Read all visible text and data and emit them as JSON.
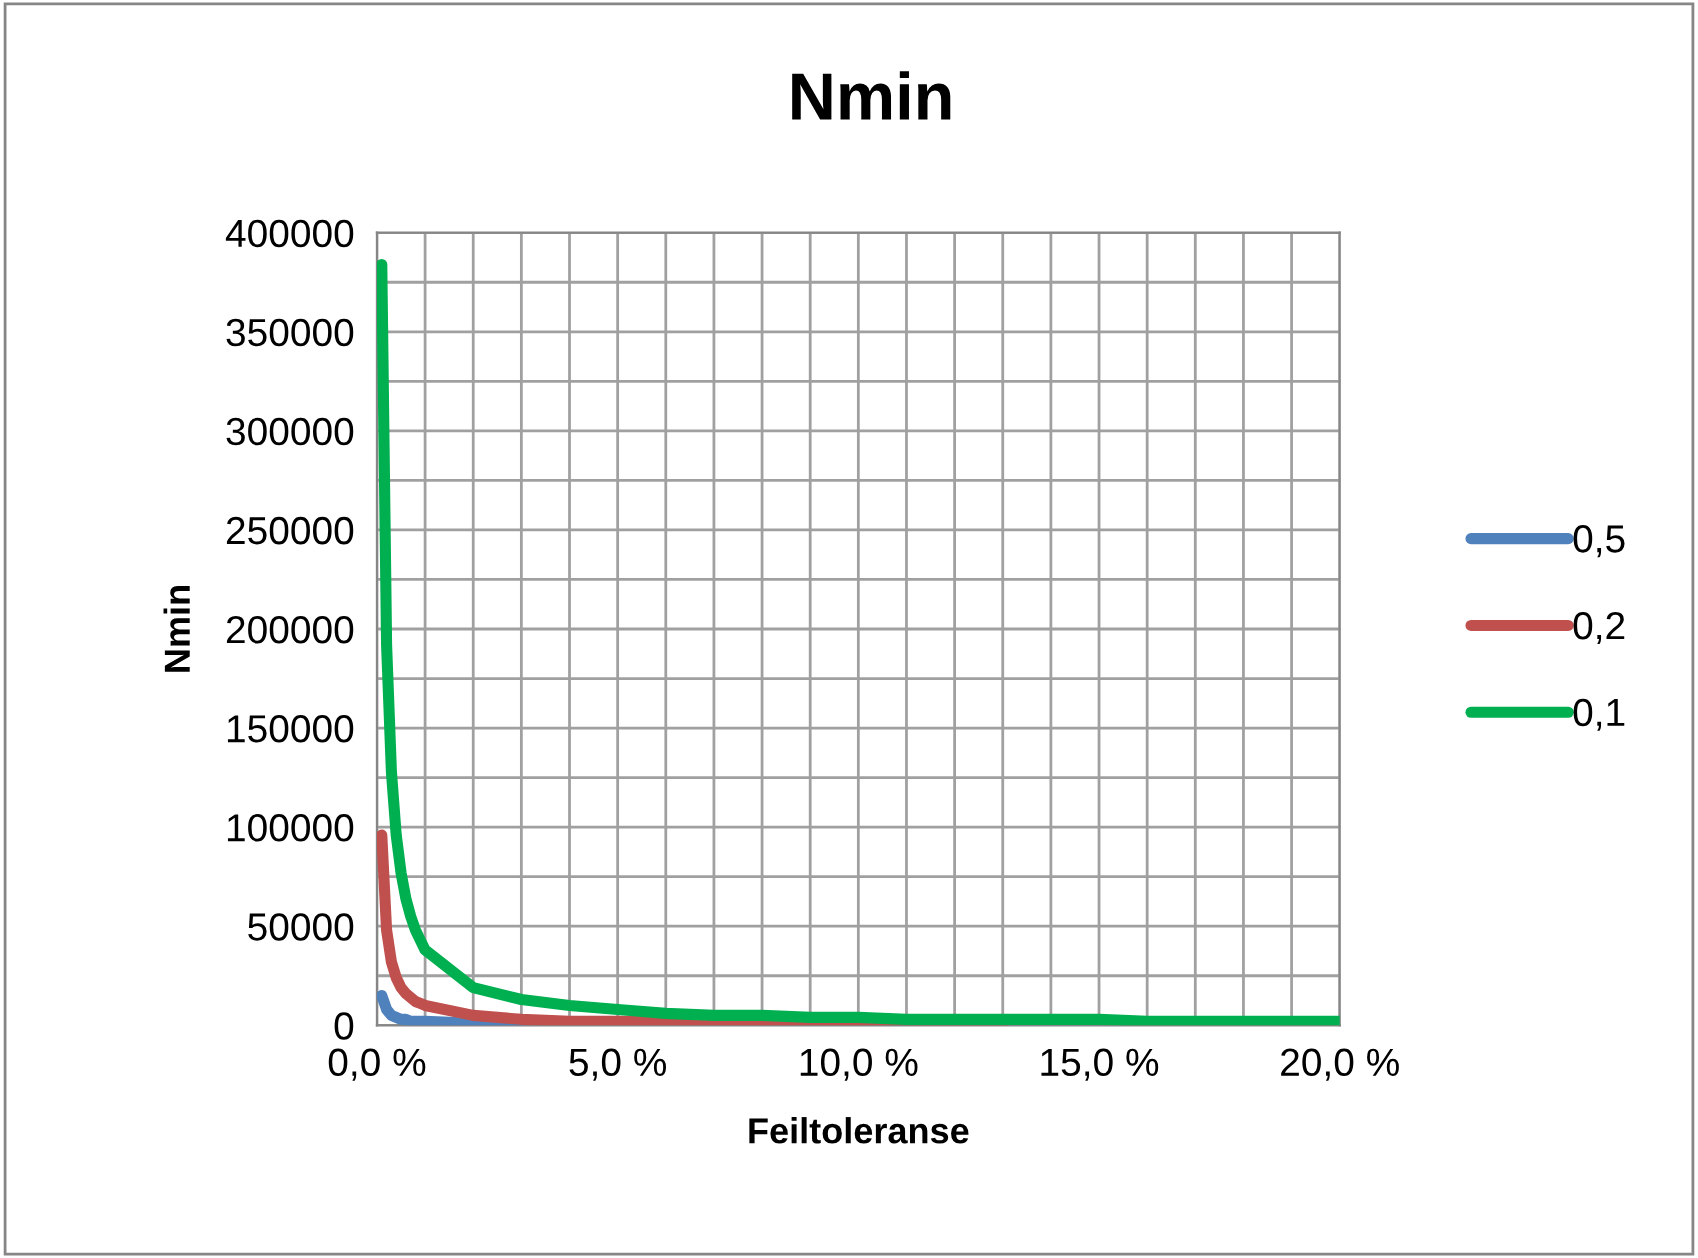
{
  "chart_data": {
    "type": "line",
    "title": "Nmin",
    "xlabel": "Feiltoleranse",
    "ylabel": "Nmin",
    "x": [
      0.1,
      0.2,
      0.3,
      0.4,
      0.5,
      0.6,
      0.7,
      0.8,
      0.9,
      1,
      2,
      3,
      4,
      5,
      6,
      7,
      8,
      9,
      10,
      11,
      12,
      13,
      14,
      15,
      16,
      17,
      18,
      19,
      20
    ],
    "series": [
      {
        "name": "0,5",
        "color": "#4f81bd",
        "values": [
          15000,
          8000,
          5000,
          4000,
          3000,
          3000,
          2000,
          2000,
          2000,
          2000,
          1000,
          1000,
          null,
          null,
          null,
          null,
          null,
          null,
          null,
          null,
          null,
          null,
          null,
          null,
          null,
          null,
          null,
          null,
          null
        ]
      },
      {
        "name": "0,2",
        "color": "#c0504d",
        "values": [
          96000,
          48000,
          32000,
          24000,
          19000,
          16000,
          14000,
          12000,
          11000,
          10000,
          5000,
          3000,
          2000,
          2000,
          2000,
          1000,
          1000,
          1000,
          1000,
          1000,
          1000,
          1000,
          null,
          null,
          null,
          null,
          null,
          null,
          null
        ]
      },
      {
        "name": "0,1",
        "color": "#00b050",
        "values": [
          384000,
          192000,
          128000,
          96000,
          77000,
          64000,
          55000,
          48000,
          43000,
          38000,
          19000,
          13000,
          10000,
          8000,
          6000,
          5000,
          5000,
          4000,
          4000,
          3000,
          3000,
          3000,
          3000,
          3000,
          2000,
          2000,
          2000,
          2000,
          2000
        ]
      }
    ],
    "xlim": [
      0,
      20
    ],
    "xticks": [
      {
        "value": 0,
        "label": "0,0 %"
      },
      {
        "value": 1,
        "label": null
      },
      {
        "value": 2,
        "label": null
      },
      {
        "value": 3,
        "label": null
      },
      {
        "value": 4,
        "label": null
      },
      {
        "value": 5,
        "label": "5,0 %"
      },
      {
        "value": 6,
        "label": null
      },
      {
        "value": 7,
        "label": null
      },
      {
        "value": 8,
        "label": null
      },
      {
        "value": 9,
        "label": null
      },
      {
        "value": 10,
        "label": "10,0 %"
      },
      {
        "value": 11,
        "label": null
      },
      {
        "value": 12,
        "label": null
      },
      {
        "value": 13,
        "label": null
      },
      {
        "value": 14,
        "label": null
      },
      {
        "value": 15,
        "label": "15,0 %"
      },
      {
        "value": 16,
        "label": null
      },
      {
        "value": 17,
        "label": null
      },
      {
        "value": 18,
        "label": null
      },
      {
        "value": 19,
        "label": null
      },
      {
        "value": 20,
        "label": "20,0 %"
      }
    ],
    "ylim": [
      0,
      400000
    ],
    "yticks": [
      0,
      {
        "value": 25000,
        "label": null
      },
      50000,
      {
        "value": 75000,
        "label": null
      },
      100000,
      {
        "value": 125000,
        "label": null
      },
      150000,
      {
        "value": 175000,
        "label": null
      },
      200000,
      {
        "value": 225000,
        "label": null
      },
      250000,
      {
        "value": 275000,
        "label": null
      },
      300000,
      {
        "value": 325000,
        "label": null
      },
      350000,
      {
        "value": 375000,
        "label": null
      },
      400000
    ],
    "grid": true,
    "legend": "right",
    "marker": "none",
    "line_style": "solid"
  }
}
